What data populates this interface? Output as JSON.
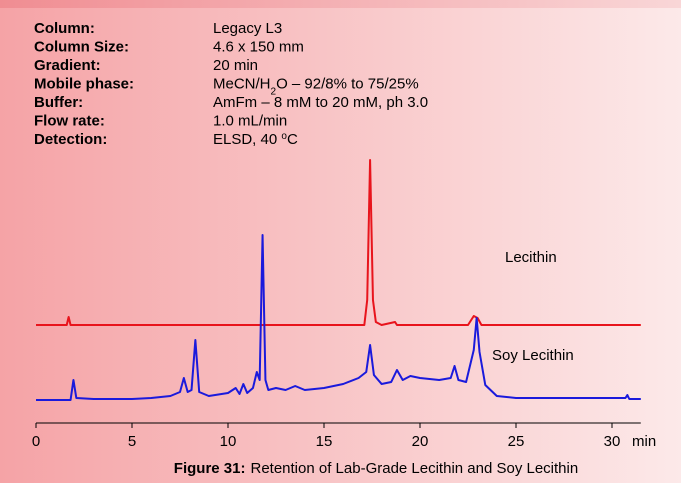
{
  "conditions": [
    {
      "label": "Column:",
      "value": [
        "Legacy L3"
      ]
    },
    {
      "label": "Column Size:",
      "value": [
        "4.6 x 150 mm"
      ]
    },
    {
      "label": "Gradient:",
      "value": [
        "20 min"
      ]
    },
    {
      "label": "Mobile phase:",
      "value": [
        "MeCN/H",
        "2",
        "O – 92/8% to 75/25%"
      ]
    },
    {
      "label": "Buffer:",
      "value": [
        "AmFm – 8 mM to 20 mM, ph 3.0"
      ]
    },
    {
      "label": "Flow rate:",
      "value": [
        "1.0 mL/min"
      ]
    },
    {
      "label": "Detection:",
      "value": [
        "ELSD, 40 ",
        "o",
        "C"
      ]
    }
  ],
  "chart_data": {
    "type": "line",
    "xlabel": "min",
    "xlim": [
      0,
      31.5
    ],
    "xticks": [
      0,
      5,
      10,
      15,
      20,
      25,
      30
    ],
    "ylim": [
      0,
      273
    ],
    "series": [
      {
        "name": "Lecithin",
        "color": "#e8141c",
        "x": [
          0,
          1.6,
          1.7,
          1.8,
          13,
          17.1,
          17.25,
          17.4,
          17.55,
          17.7,
          18,
          18.7,
          18.8,
          22.5,
          22.8,
          23,
          23.2,
          31.5
        ],
        "values": [
          98,
          98,
          106,
          98,
          98,
          98,
          123,
          263,
          123,
          101,
          98,
          101,
          98,
          98,
          107,
          105,
          98,
          98
        ]
      },
      {
        "name": "Soy Lecithin",
        "color": "#1a1adc",
        "x": [
          0,
          1.8,
          1.95,
          2.1,
          3,
          5,
          6,
          7,
          7.5,
          7.7,
          7.9,
          8.1,
          8.3,
          8.5,
          9,
          10,
          10.4,
          10.6,
          10.8,
          11,
          11.3,
          11.5,
          11.65,
          11.8,
          11.95,
          12.1,
          12.5,
          13,
          13.5,
          14,
          15,
          16,
          16.8,
          17.2,
          17.4,
          17.6,
          18,
          18.5,
          18.8,
          19.1,
          19.5,
          20,
          21,
          21.6,
          21.8,
          22,
          22.4,
          22.8,
          22.95,
          23.1,
          23.4,
          24,
          25,
          27,
          29,
          30.7,
          30.8,
          30.9,
          31.5
        ],
        "values": [
          23,
          23,
          43,
          25,
          24,
          24,
          25,
          27,
          31,
          45,
          31,
          33,
          83,
          31,
          27,
          30,
          35,
          29,
          39,
          30,
          35,
          51,
          43,
          188,
          43,
          33,
          35,
          33,
          37,
          33,
          35,
          39,
          45,
          51,
          78,
          48,
          39,
          41,
          53,
          43,
          47,
          45,
          43,
          45,
          57,
          43,
          41,
          73,
          105,
          71,
          38,
          27,
          25,
          25,
          25,
          25,
          28,
          24,
          24
        ]
      }
    ]
  },
  "caption": {
    "label": "Figure 31:",
    "text": "Retention of Lab-Grade Lecithin and Soy Lecithin"
  }
}
